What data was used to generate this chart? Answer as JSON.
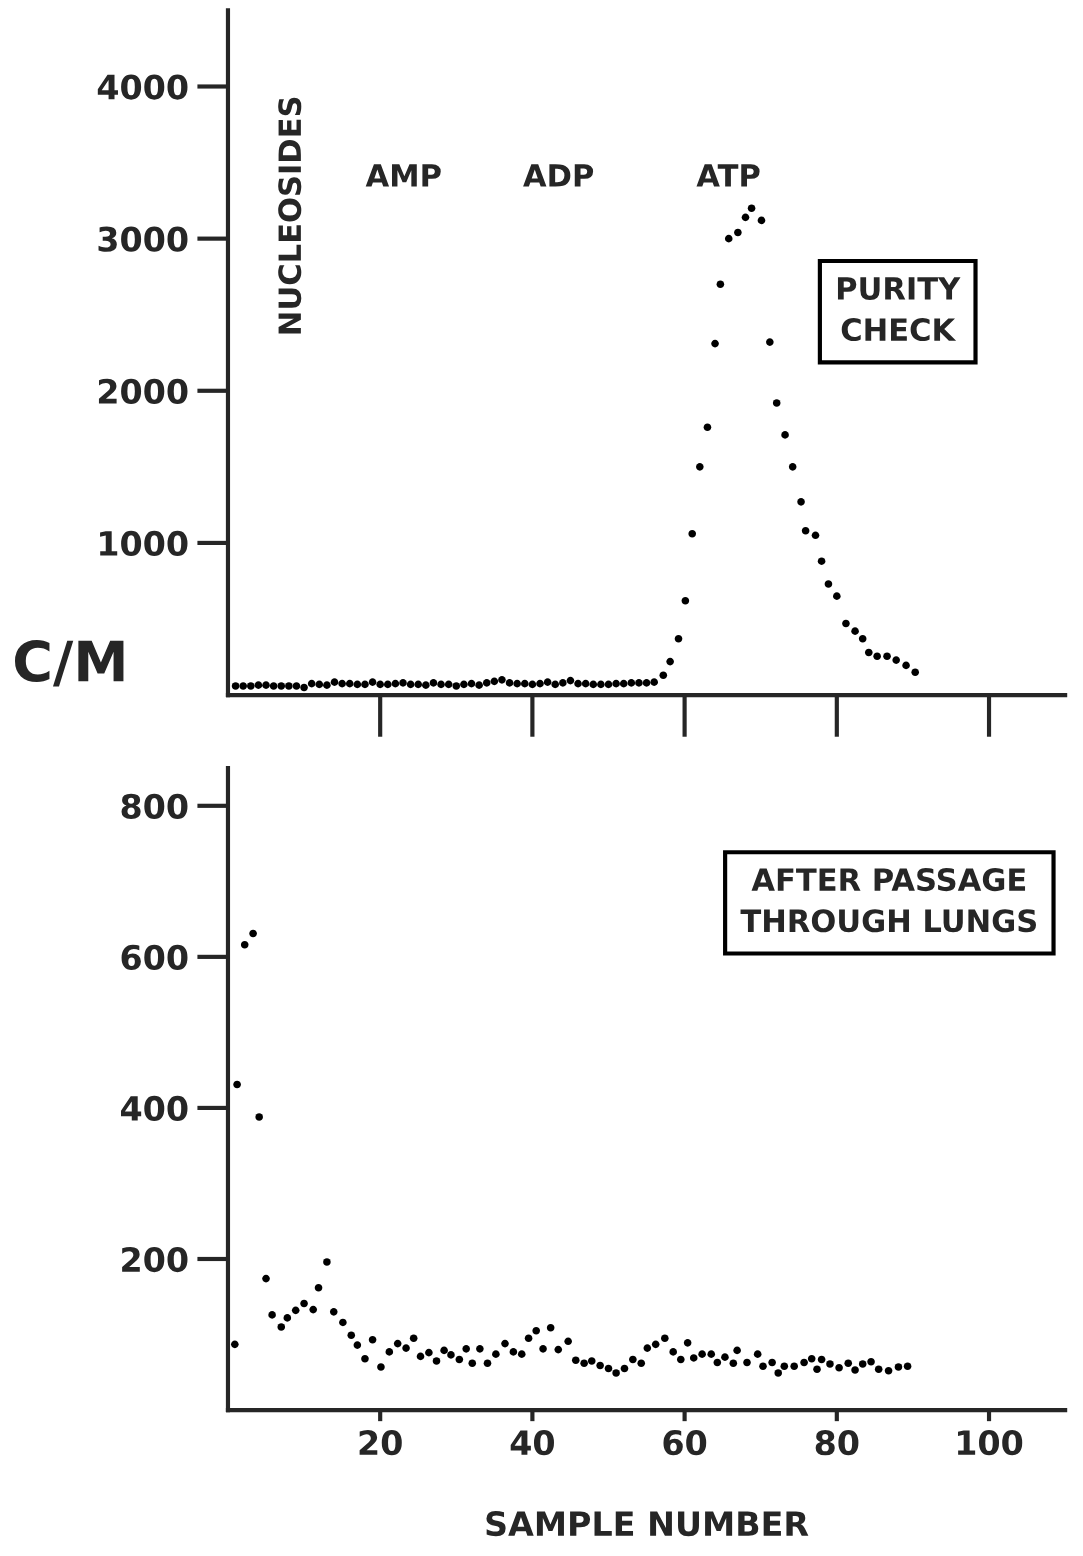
{
  "chart_data": [
    {
      "type": "scatter",
      "ylabel": "C/M",
      "xlim": [
        0,
        110
      ],
      "ylim": [
        0,
        4500
      ],
      "xticks": [
        {
          "value": 20,
          "label": null
        },
        {
          "value": 40,
          "label": null
        },
        {
          "value": 60,
          "label": null
        },
        {
          "value": 80,
          "label": null
        },
        {
          "value": 100,
          "label": null
        }
      ],
      "yticks": [
        1000,
        2000,
        3000,
        4000
      ],
      "tick_labels": "y",
      "grid": false,
      "marker": "circle",
      "annotations": [
        "NUCLEOSIDES",
        "AMP",
        "ADP",
        "ATP",
        "PURITY\nCHECK"
      ],
      "series": [
        {
          "color": "#000000",
          "x": [
            1,
            2,
            3,
            4,
            5,
            6,
            7,
            8,
            9,
            10,
            11,
            12,
            13,
            14,
            15,
            16,
            17,
            18,
            19,
            20,
            21,
            22,
            23,
            24,
            25,
            26,
            27,
            28,
            29,
            30,
            31,
            32,
            33,
            34,
            35,
            36,
            37,
            38,
            39,
            40,
            41,
            42,
            43,
            44,
            45,
            46,
            47,
            48,
            49,
            50,
            51,
            52,
            53,
            54,
            55,
            56,
            57.2,
            58.1,
            59.2,
            60.1,
            61,
            62,
            63,
            64,
            64.7,
            65.8,
            67,
            68,
            68.8,
            70.1,
            71.2,
            72.1,
            73.2,
            74.2,
            75.3,
            75.9,
            77.2,
            78,
            78.9,
            80,
            81.2,
            82.4,
            83.4,
            84.2,
            85.3,
            86.6,
            87.8,
            89.1,
            90.3
          ],
          "values": [
            60,
            60,
            60,
            65,
            65,
            60,
            60,
            60,
            60,
            50,
            75,
            70,
            65,
            85,
            75,
            75,
            70,
            70,
            85,
            70,
            70,
            75,
            80,
            70,
            70,
            65,
            80,
            70,
            70,
            60,
            70,
            75,
            65,
            80,
            90,
            100,
            80,
            75,
            75,
            70,
            75,
            85,
            70,
            80,
            95,
            75,
            75,
            70,
            70,
            70,
            75,
            75,
            80,
            80,
            80,
            85,
            130,
            220,
            370,
            620,
            1060,
            1500,
            1760,
            2310,
            2700,
            3000,
            3040,
            3140,
            3200,
            3120,
            2320,
            1920,
            1710,
            1500,
            1270,
            1080,
            1050,
            880,
            730,
            650,
            470,
            420,
            370,
            280,
            255,
            255,
            230,
            195,
            150
          ]
        }
      ]
    },
    {
      "type": "scatter",
      "xlabel": "SAMPLE NUMBER",
      "xlim": [
        0,
        110
      ],
      "ylim": [
        0,
        850
      ],
      "xticks": [
        20,
        40,
        60,
        80,
        100
      ],
      "yticks": [
        200,
        400,
        600,
        800
      ],
      "grid": false,
      "marker": "circle",
      "annotations": [
        "AFTER PASSAGE\nTHROUGH LUNGS"
      ],
      "series": [
        {
          "color": "#000000",
          "x": [
            0.9,
            1.2,
            2.2,
            3.3,
            4.1,
            5,
            5.8,
            7,
            7.8,
            8.9,
            10,
            11.2,
            11.9,
            13,
            13.9,
            15.1,
            16.2,
            17,
            18,
            19,
            20.1,
            21.2,
            22.3,
            23.4,
            24.4,
            25.3,
            26.4,
            27.4,
            28.4,
            29.3,
            30.4,
            31.3,
            32.1,
            33.1,
            34.1,
            35.2,
            36.4,
            37.5,
            38.6,
            39.5,
            40.5,
            41.4,
            42.4,
            43.4,
            44.7,
            45.7,
            46.8,
            47.8,
            48.9,
            50,
            51,
            52.1,
            53.2,
            54.3,
            55.1,
            56.2,
            57.4,
            58.5,
            59.5,
            60.4,
            61.2,
            62.3,
            63.5,
            64.3,
            65.3,
            66.4,
            66.9,
            68.2,
            69.6,
            70.3,
            71.5,
            72.3,
            73.1,
            74.4,
            75.7,
            76.7,
            77.4,
            78,
            79.1,
            80.3,
            81.5,
            82.4,
            83.4,
            84.5,
            85.5,
            86.8,
            88.1,
            89.3
          ],
          "values": [
            87,
            431,
            616,
            631,
            388,
            174,
            126,
            110,
            122,
            132,
            141,
            133,
            162,
            196,
            130,
            116,
            99,
            86,
            68,
            93,
            57,
            77,
            88,
            82,
            95,
            71,
            76,
            65,
            79,
            73,
            67,
            81,
            62,
            81,
            62,
            74,
            88,
            77,
            74,
            95,
            105,
            81,
            109,
            80,
            91,
            66,
            62,
            65,
            59,
            55,
            49,
            55,
            67,
            62,
            82,
            87,
            95,
            77,
            67,
            89,
            69,
            74,
            74,
            63,
            70,
            62,
            79,
            63,
            74,
            58,
            63,
            49,
            58,
            58,
            63,
            68,
            54,
            67,
            61,
            56,
            62,
            53,
            61,
            64,
            54,
            52,
            57,
            58
          ]
        }
      ]
    }
  ]
}
